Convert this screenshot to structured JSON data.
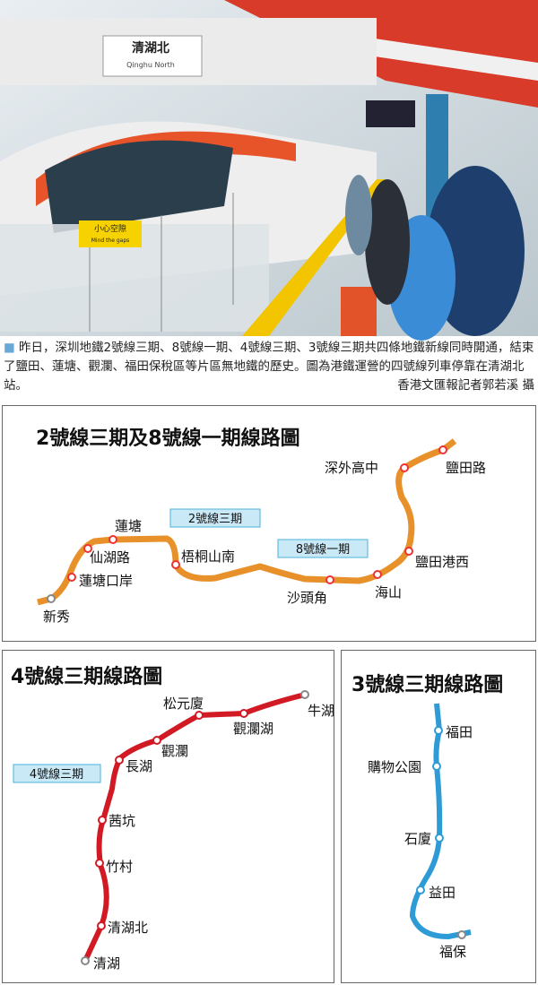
{
  "photo": {
    "sign_chinese": "清湖北",
    "sign_english": "Qinghu North",
    "warning_labels": [
      "小心空隙",
      "Mind the gaps"
    ]
  },
  "caption": {
    "text": "昨日，深圳地鐵2號線三期、8號線一期、4號線三期、3號線三期共四條地鐵新線同時開通，結束了鹽田、蓮塘、觀瀾、福田保稅區等片區無地鐵的歷史。圖為港鐵運營的四號線列車停靠在清湖北站。",
    "credit": "香港文匯報記者郭若溪 攝"
  },
  "maps": [
    {
      "title": "2號線三期及8號線一期線路圖",
      "line_tags": [
        "2號線三期",
        "8號線一期"
      ],
      "stations": [
        "新秀",
        "蓮塘口岸",
        "仙湖路",
        "蓮塘",
        "梧桐山南",
        "沙頭角",
        "海山",
        "鹽田港西",
        "深外高中",
        "鹽田路"
      ]
    },
    {
      "title": "4號線三期線路圖",
      "line_tags": [
        "4號線三期"
      ],
      "stations": [
        "清湖",
        "清湖北",
        "竹村",
        "茜坑",
        "長湖",
        "觀瀾",
        "松元廈",
        "觀瀾湖",
        "牛湖"
      ]
    },
    {
      "title": "3號線三期線路圖",
      "line_tags": [],
      "stations": [
        "福田",
        "購物公園",
        "石廈",
        "益田",
        "福保"
      ]
    }
  ]
}
